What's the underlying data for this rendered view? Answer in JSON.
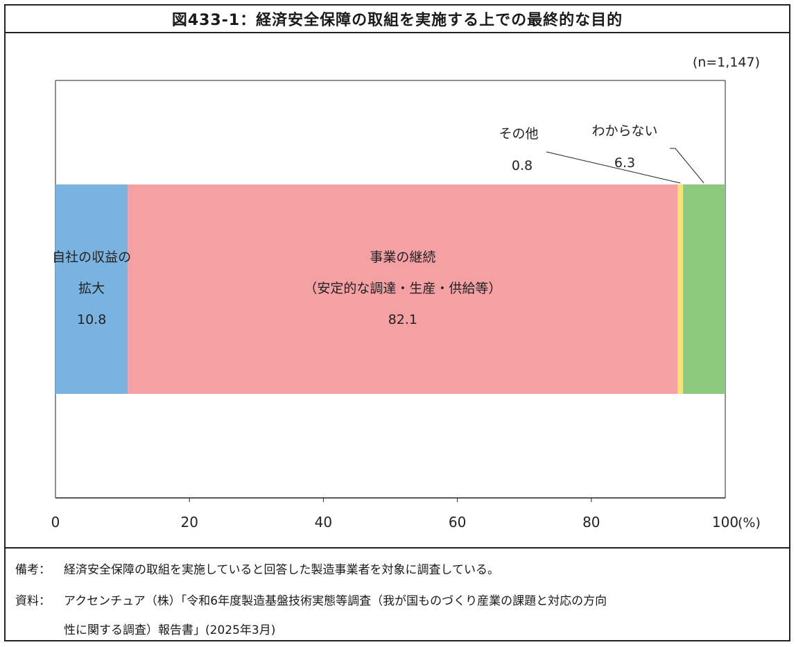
{
  "header": {
    "title": "図433-1：経済安全保障の取組を実施する上での最終的な目的"
  },
  "chart_data": {
    "type": "bar",
    "orientation": "horizontal-stacked-100",
    "n_label": "(n=1,147)",
    "x_ticks": [
      "0",
      "20",
      "40",
      "60",
      "80",
      "100"
    ],
    "x_unit": "(%)",
    "xlim": [
      0,
      100
    ],
    "grid": false,
    "series": [
      {
        "name": "自社の収益の拡大",
        "label_lines": [
          "自社の収益の",
          "拡大"
        ],
        "value": 10.8,
        "value_label": "10.8",
        "color": "#7ab3e0"
      },
      {
        "name": "事業の継続（安定的な調達・生産・供給等）",
        "label_lines": [
          "事業の継続",
          "（安定的な調達・生産・供給等）"
        ],
        "value": 82.1,
        "value_label": "82.1",
        "color": "#f5a0a3"
      },
      {
        "name": "その他",
        "label_lines": [
          "その他"
        ],
        "value": 0.8,
        "value_label": "0.8",
        "color": "#f7e27a"
      },
      {
        "name": "わからない",
        "label_lines": [
          "わからない"
        ],
        "value": 6.3,
        "value_label": "6.3",
        "color": "#8cc87e"
      }
    ]
  },
  "notes": {
    "remarks_head": "備考：",
    "remarks_text": "経済安全保障の取組を実施していると回答した製造事業者を対象に調査している。",
    "source_head": "資料：",
    "source_text_1": "アクセンチュア（株）「令和6年度製造基盤技術実態等調査（我が国ものづくり産業の課題と対応の方向",
    "source_text_2": "性に関する調査）報告書」(2025年3月)"
  }
}
